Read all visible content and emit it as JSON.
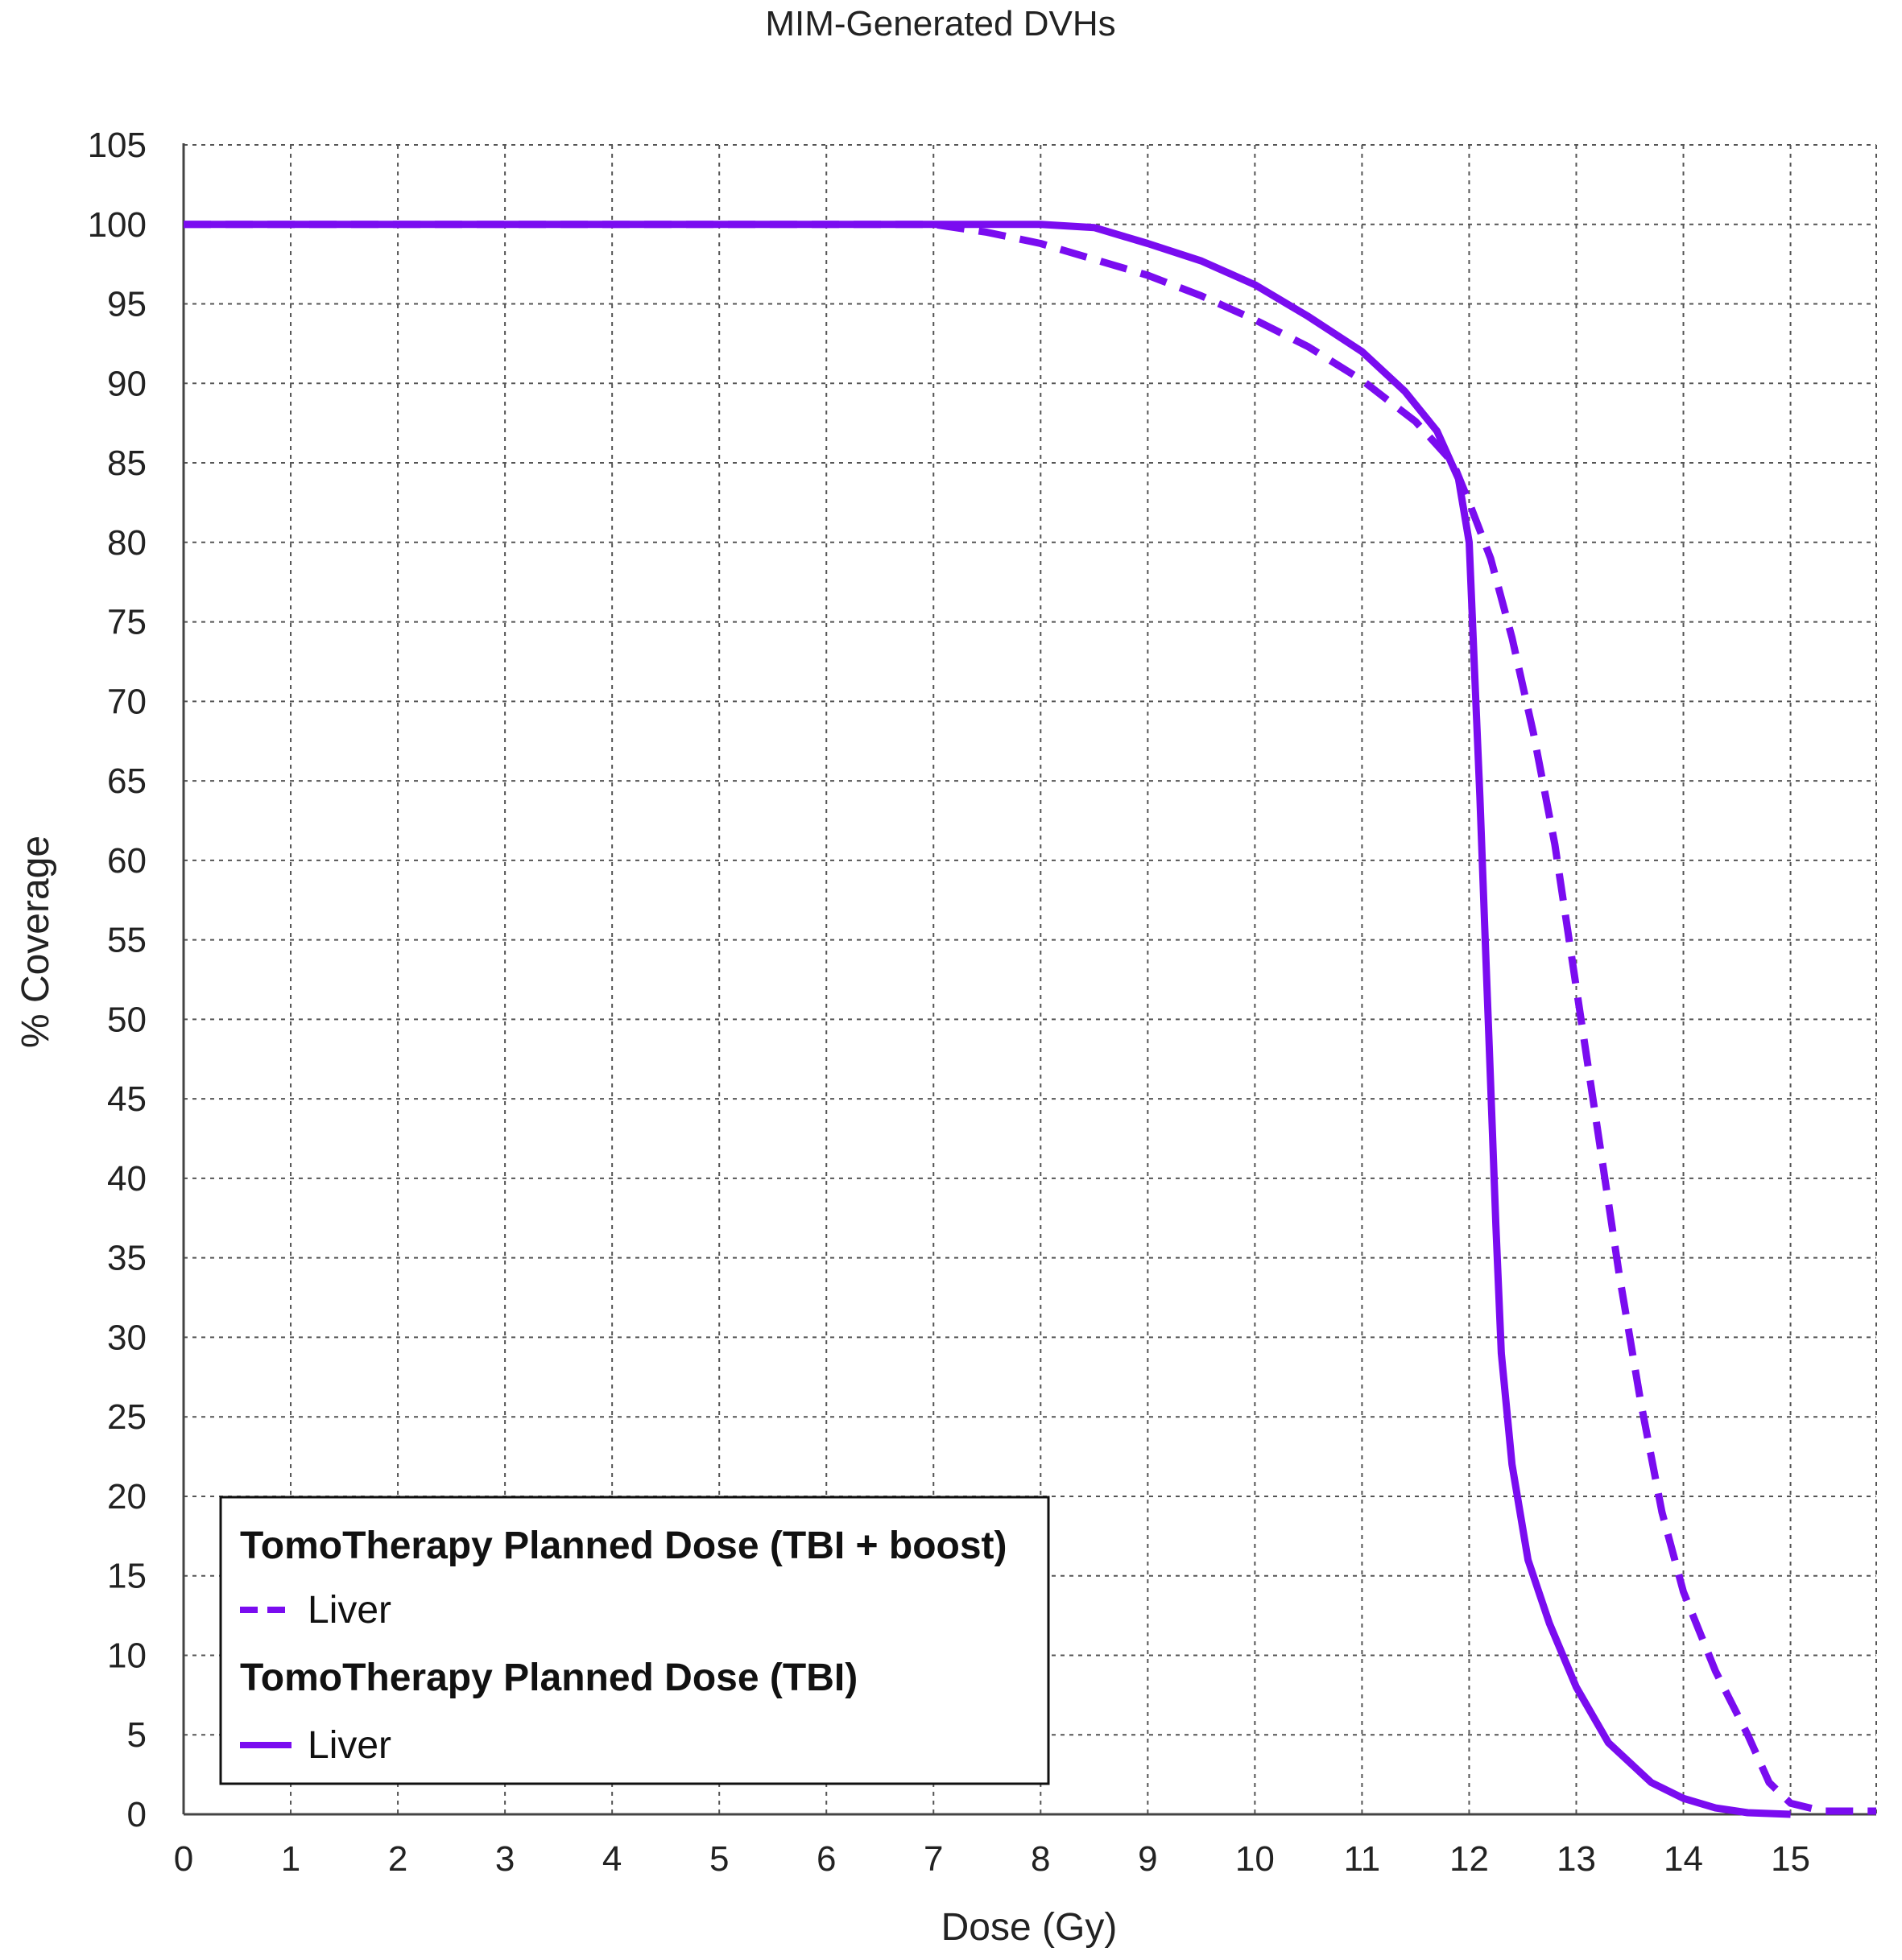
{
  "chart_data": {
    "type": "line",
    "title": "MIM-Generated DVHs",
    "xlabel": "Dose (Gy)",
    "ylabel": "% Coverage",
    "xlim": [
      0,
      15.8
    ],
    "ylim": [
      0,
      105
    ],
    "xticks": [
      0,
      1,
      2,
      3,
      4,
      5,
      6,
      7,
      8,
      9,
      10,
      11,
      12,
      13,
      14,
      15
    ],
    "yticks": [
      0,
      5,
      10,
      15,
      20,
      25,
      30,
      35,
      40,
      45,
      50,
      55,
      60,
      65,
      70,
      75,
      80,
      85,
      90,
      95,
      100,
      105
    ],
    "grid": true,
    "legend_position": "bottom-left",
    "legend": [
      {
        "group": "TomoTherapy Planned Dose (TBI + boost)",
        "entry": "Liver",
        "style": "dashed"
      },
      {
        "group": "TomoTherapy Planned Dose (TBI)",
        "entry": "Liver",
        "style": "solid"
      }
    ],
    "series": [
      {
        "group": "TomoTherapy Planned Dose (TBI + boost)",
        "name": "Liver",
        "style": "dashed",
        "color": "#7a0cf0",
        "points": [
          [
            0,
            100
          ],
          [
            6,
            100
          ],
          [
            7,
            100
          ],
          [
            7.5,
            99.5
          ],
          [
            8,
            98.8
          ],
          [
            8.5,
            97.8
          ],
          [
            9,
            96.8
          ],
          [
            9.5,
            95.5
          ],
          [
            10,
            94
          ],
          [
            10.5,
            92.3
          ],
          [
            11,
            90.2
          ],
          [
            11.5,
            87.6
          ],
          [
            11.85,
            85
          ],
          [
            12,
            82.5
          ],
          [
            12.2,
            79
          ],
          [
            12.4,
            74
          ],
          [
            12.6,
            68
          ],
          [
            12.8,
            61
          ],
          [
            13,
            52
          ],
          [
            13.2,
            43
          ],
          [
            13.4,
            34
          ],
          [
            13.6,
            26
          ],
          [
            13.8,
            19
          ],
          [
            14,
            14
          ],
          [
            14.3,
            9
          ],
          [
            14.6,
            5
          ],
          [
            14.8,
            2
          ],
          [
            15,
            0.7
          ],
          [
            15.3,
            0.2
          ],
          [
            15.8,
            0.2
          ]
        ]
      },
      {
        "group": "TomoTherapy Planned Dose (TBI)",
        "name": "Liver",
        "style": "solid",
        "color": "#7a0cf0",
        "points": [
          [
            0,
            100
          ],
          [
            7,
            100
          ],
          [
            8,
            100
          ],
          [
            8.5,
            99.8
          ],
          [
            9,
            98.8
          ],
          [
            9.5,
            97.7
          ],
          [
            10,
            96.2
          ],
          [
            10.5,
            94.2
          ],
          [
            11,
            92
          ],
          [
            11.4,
            89.5
          ],
          [
            11.7,
            87
          ],
          [
            11.9,
            84
          ],
          [
            12,
            80
          ],
          [
            12.05,
            72
          ],
          [
            12.1,
            64
          ],
          [
            12.15,
            55
          ],
          [
            12.2,
            46
          ],
          [
            12.25,
            37
          ],
          [
            12.3,
            29
          ],
          [
            12.4,
            22
          ],
          [
            12.55,
            16
          ],
          [
            12.75,
            12
          ],
          [
            13,
            8
          ],
          [
            13.3,
            4.5
          ],
          [
            13.7,
            2
          ],
          [
            14,
            1
          ],
          [
            14.3,
            0.4
          ],
          [
            14.6,
            0.1
          ],
          [
            15,
            0
          ]
        ]
      }
    ]
  }
}
